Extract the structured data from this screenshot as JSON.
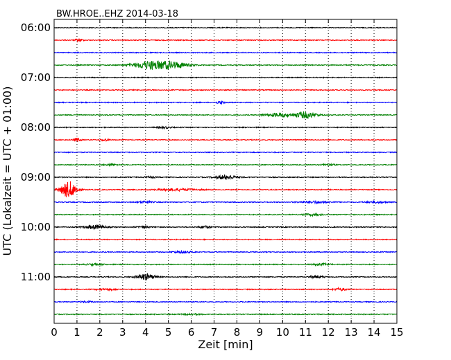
{
  "chart_data": {
    "type": "line",
    "title": "BW.HROE..EHZ 2014-03-18",
    "xlabel": "Zeit  [min]",
    "ylabel": "UTC (Lokalzeit = UTC + 01:00)",
    "xlim": [
      0,
      15
    ],
    "x_ticks": [
      "0",
      "1",
      "2",
      "3",
      "4",
      "5",
      "6",
      "7",
      "8",
      "9",
      "10",
      "11",
      "12",
      "13",
      "14",
      "15"
    ],
    "y_tick_labels": [
      "06:00",
      "07:00",
      "08:00",
      "09:00",
      "10:00",
      "11:00"
    ],
    "grid": "vertical dotted",
    "row_minutes": 15,
    "row_colors": [
      "#000000",
      "#ff0000",
      "#0000ff",
      "#008000"
    ],
    "rows": [
      {
        "start": "06:00",
        "color": "#000000",
        "events": []
      },
      {
        "start": "06:15",
        "color": "#ff0000",
        "events": [
          {
            "t": 1.1,
            "amp": 0.25,
            "dur": 0.3
          }
        ]
      },
      {
        "start": "06:30",
        "color": "#0000ff",
        "events": []
      },
      {
        "start": "06:45",
        "color": "#008000",
        "events": [
          {
            "t": 4.1,
            "amp": 0.55,
            "dur": 1.4
          },
          {
            "t": 5.1,
            "amp": 0.55,
            "dur": 1.5
          }
        ]
      },
      {
        "start": "07:00",
        "color": "#000000",
        "events": []
      },
      {
        "start": "07:15",
        "color": "#ff0000",
        "events": []
      },
      {
        "start": "07:30",
        "color": "#0000ff",
        "events": [
          {
            "t": 7.3,
            "amp": 0.2,
            "dur": 0.4
          }
        ]
      },
      {
        "start": "07:45",
        "color": "#008000",
        "events": [
          {
            "t": 9.8,
            "amp": 0.3,
            "dur": 1.2
          },
          {
            "t": 11.0,
            "amp": 0.5,
            "dur": 1.0
          }
        ]
      },
      {
        "start": "08:00",
        "color": "#000000",
        "events": [
          {
            "t": 4.8,
            "amp": 0.15,
            "dur": 0.6
          }
        ]
      },
      {
        "start": "08:15",
        "color": "#ff0000",
        "events": [
          {
            "t": 1.0,
            "amp": 0.3,
            "dur": 0.3
          },
          {
            "t": 2.2,
            "amp": 0.15,
            "dur": 0.4
          }
        ]
      },
      {
        "start": "08:30",
        "color": "#0000ff",
        "events": []
      },
      {
        "start": "08:45",
        "color": "#008000",
        "events": [
          {
            "t": 2.5,
            "amp": 0.12,
            "dur": 0.6
          },
          {
            "t": 12.0,
            "amp": 0.15,
            "dur": 0.5
          }
        ]
      },
      {
        "start": "09:00",
        "color": "#000000",
        "events": [
          {
            "t": 7.5,
            "amp": 0.35,
            "dur": 0.9
          },
          {
            "t": 4.2,
            "amp": 0.12,
            "dur": 0.5
          }
        ]
      },
      {
        "start": "09:15",
        "color": "#ff0000",
        "events": [
          {
            "t": 0.65,
            "amp": 1.3,
            "dur": 0.7
          },
          {
            "t": 5.4,
            "amp": 0.18,
            "dur": 1.8
          }
        ]
      },
      {
        "start": "09:30",
        "color": "#0000ff",
        "events": [
          {
            "t": 4.0,
            "amp": 0.15,
            "dur": 0.6
          },
          {
            "t": 11.4,
            "amp": 0.18,
            "dur": 1.2
          },
          {
            "t": 14.1,
            "amp": 0.15,
            "dur": 0.8
          }
        ]
      },
      {
        "start": "09:45",
        "color": "#008000",
        "events": [
          {
            "t": 11.3,
            "amp": 0.15,
            "dur": 0.8
          }
        ]
      },
      {
        "start": "10:00",
        "color": "#000000",
        "events": [
          {
            "t": 1.8,
            "amp": 0.3,
            "dur": 1.0
          },
          {
            "t": 3.9,
            "amp": 0.18,
            "dur": 0.5
          },
          {
            "t": 6.6,
            "amp": 0.2,
            "dur": 0.5
          }
        ]
      },
      {
        "start": "10:15",
        "color": "#ff0000",
        "events": []
      },
      {
        "start": "10:30",
        "color": "#0000ff",
        "events": [
          {
            "t": 5.6,
            "amp": 0.15,
            "dur": 0.8
          }
        ]
      },
      {
        "start": "10:45",
        "color": "#008000",
        "events": [
          {
            "t": 1.8,
            "amp": 0.12,
            "dur": 0.8
          },
          {
            "t": 11.7,
            "amp": 0.15,
            "dur": 0.8
          }
        ]
      },
      {
        "start": "11:00",
        "color": "#000000",
        "events": [
          {
            "t": 4.0,
            "amp": 0.5,
            "dur": 0.8
          },
          {
            "t": 11.5,
            "amp": 0.2,
            "dur": 0.6
          }
        ]
      },
      {
        "start": "11:15",
        "color": "#ff0000",
        "events": [
          {
            "t": 2.3,
            "amp": 0.12,
            "dur": 0.8
          },
          {
            "t": 12.5,
            "amp": 0.2,
            "dur": 0.6
          }
        ]
      },
      {
        "start": "11:30",
        "color": "#0000ff",
        "events": [
          {
            "t": 1.4,
            "amp": 0.1,
            "dur": 0.6
          }
        ]
      },
      {
        "start": "11:45",
        "color": "#008000",
        "events": [
          {
            "t": 6.0,
            "amp": 0.1,
            "dur": 0.8
          }
        ]
      }
    ]
  }
}
